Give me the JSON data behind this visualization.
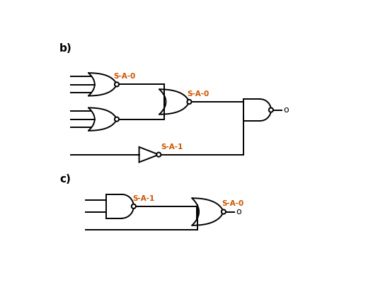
{
  "bg_color": "#ffffff",
  "line_color": "#000000",
  "text_color": "#000000",
  "orange_color": "#cc5500",
  "label_b": "b)",
  "label_c": "c)",
  "label_sa0": "S-A-0",
  "label_sa1": "S-A-1",
  "label_o": "o",
  "figsize": [
    5.27,
    4.3
  ],
  "dpi": 100
}
